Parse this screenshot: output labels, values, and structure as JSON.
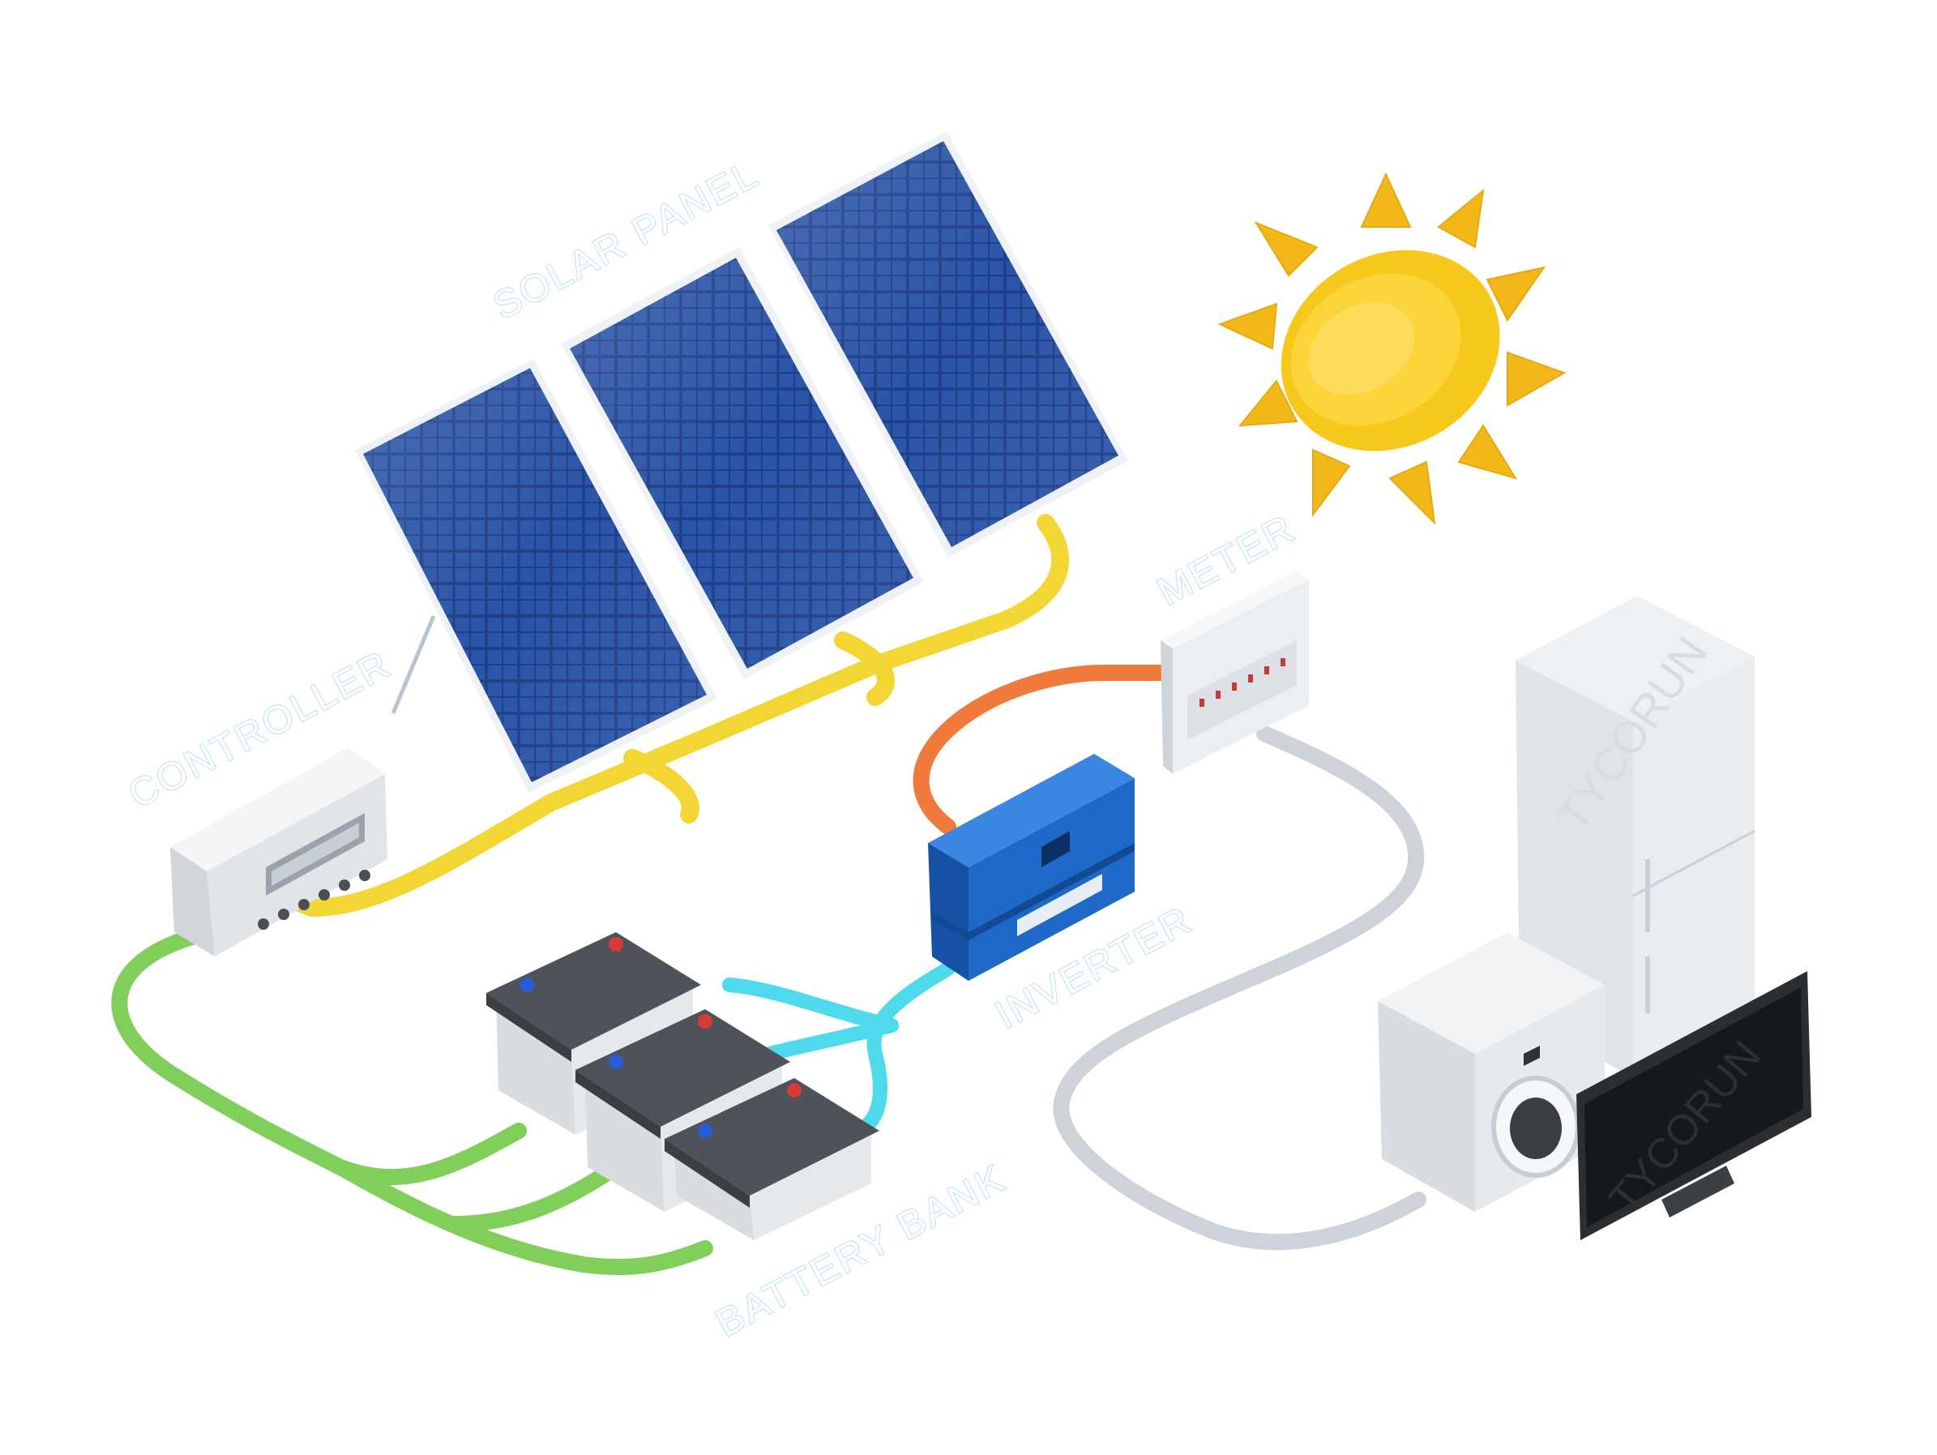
{
  "labels": {
    "solar_panel": "SOLAR PANEL",
    "controller": "CONTROLLER",
    "meter": "METER",
    "inverter": "INVERTER",
    "battery_bank": "BATTERY BANK"
  },
  "watermark": "TYCORUN",
  "colors": {
    "panel_cells": "#1f3f8a",
    "sun": "#f7c81c",
    "wire_panel_controller": "#f3d633",
    "wire_battery_controller": "#7fcf5a",
    "wire_battery_inverter": "#4fd9ec",
    "wire_inverter_meter": "#ef7a3b",
    "wire_meter_appliances": "#cdd3d8",
    "inverter_body": "#1e68c8",
    "label_text": "#bfe3f2"
  },
  "components": [
    "solar-panel",
    "controller",
    "battery-bank",
    "inverter",
    "meter",
    "refrigerator",
    "washing-machine",
    "television",
    "sun"
  ]
}
